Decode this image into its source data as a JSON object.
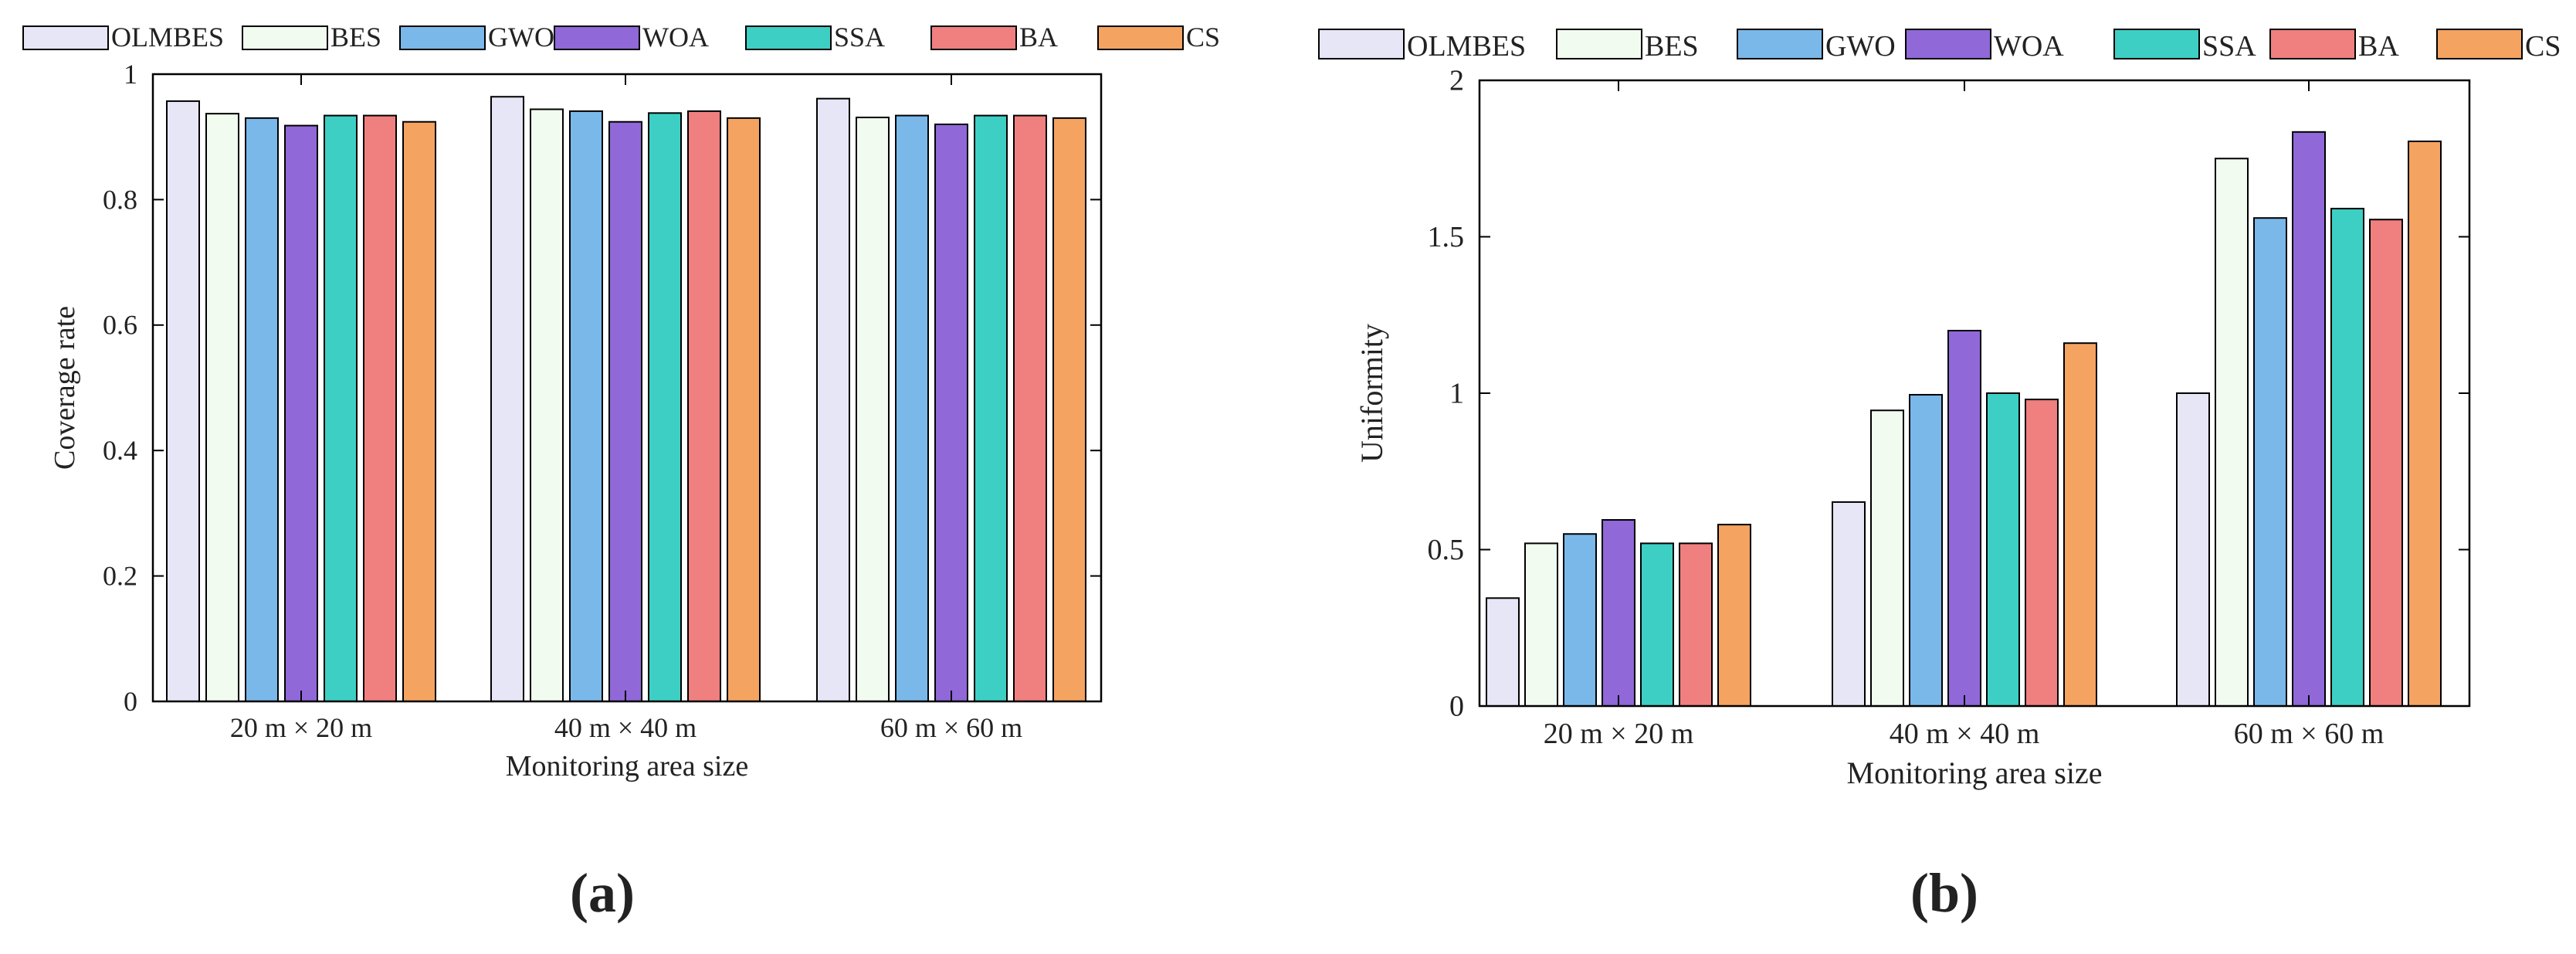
{
  "colors": {
    "OLMBES": "#e6e6f7",
    "BES": "#f1fbef",
    "GWO": "#7ab8ea",
    "WOA": "#9068d8",
    "SSA": "#3dcfc4",
    "BA": "#f07f7f",
    "CS": "#f5a361"
  },
  "chart_data": [
    {
      "panel_label": "(a)",
      "type": "bar",
      "title": "",
      "xlabel": "Monitoring area size",
      "ylabel": "Coverage rate",
      "ylim": [
        0,
        1
      ],
      "yticks": [
        0,
        0.2,
        0.4,
        0.6,
        0.8,
        1
      ],
      "ytick_labels": [
        "0",
        "0.2",
        "0.4",
        "0.6",
        "0.8",
        "1"
      ],
      "categories": [
        "20 m × 20 m",
        "40 m × 40 m",
        "60 m × 60 m"
      ],
      "legend": "top",
      "series": [
        {
          "name": "OLMBES",
          "values": [
            0.957,
            0.964,
            0.961
          ]
        },
        {
          "name": "BES",
          "values": [
            0.937,
            0.944,
            0.931
          ]
        },
        {
          "name": "GWO",
          "values": [
            0.93,
            0.941,
            0.934
          ]
        },
        {
          "name": "WOA",
          "values": [
            0.918,
            0.924,
            0.92
          ]
        },
        {
          "name": "SSA",
          "values": [
            0.934,
            0.938,
            0.934
          ]
        },
        {
          "name": "BA",
          "values": [
            0.934,
            0.941,
            0.934
          ]
        },
        {
          "name": "CS",
          "values": [
            0.924,
            0.93,
            0.93
          ]
        }
      ]
    },
    {
      "panel_label": "(b)",
      "type": "bar",
      "title": "",
      "xlabel": "Monitoring area size",
      "ylabel": "Uniformity",
      "ylim": [
        0,
        2
      ],
      "yticks": [
        0,
        0.5,
        1,
        1.5,
        2
      ],
      "ytick_labels": [
        "0",
        "0.5",
        "1",
        "1.5",
        "2"
      ],
      "categories": [
        "20 m × 20 m",
        "40 m × 40 m",
        "60 m × 60 m"
      ],
      "legend": "top",
      "series": [
        {
          "name": "OLMBES",
          "values": [
            0.345,
            0.652,
            1.0
          ]
        },
        {
          "name": "BES",
          "values": [
            0.52,
            0.945,
            1.75
          ]
        },
        {
          "name": "GWO",
          "values": [
            0.55,
            0.995,
            1.56
          ]
        },
        {
          "name": "WOA",
          "values": [
            0.595,
            1.2,
            1.835
          ]
        },
        {
          "name": "SSA",
          "values": [
            0.52,
            1.0,
            1.59
          ]
        },
        {
          "name": "BA",
          "values": [
            0.52,
            0.98,
            1.555
          ]
        },
        {
          "name": "CS",
          "values": [
            0.58,
            1.16,
            1.805
          ]
        }
      ]
    }
  ]
}
